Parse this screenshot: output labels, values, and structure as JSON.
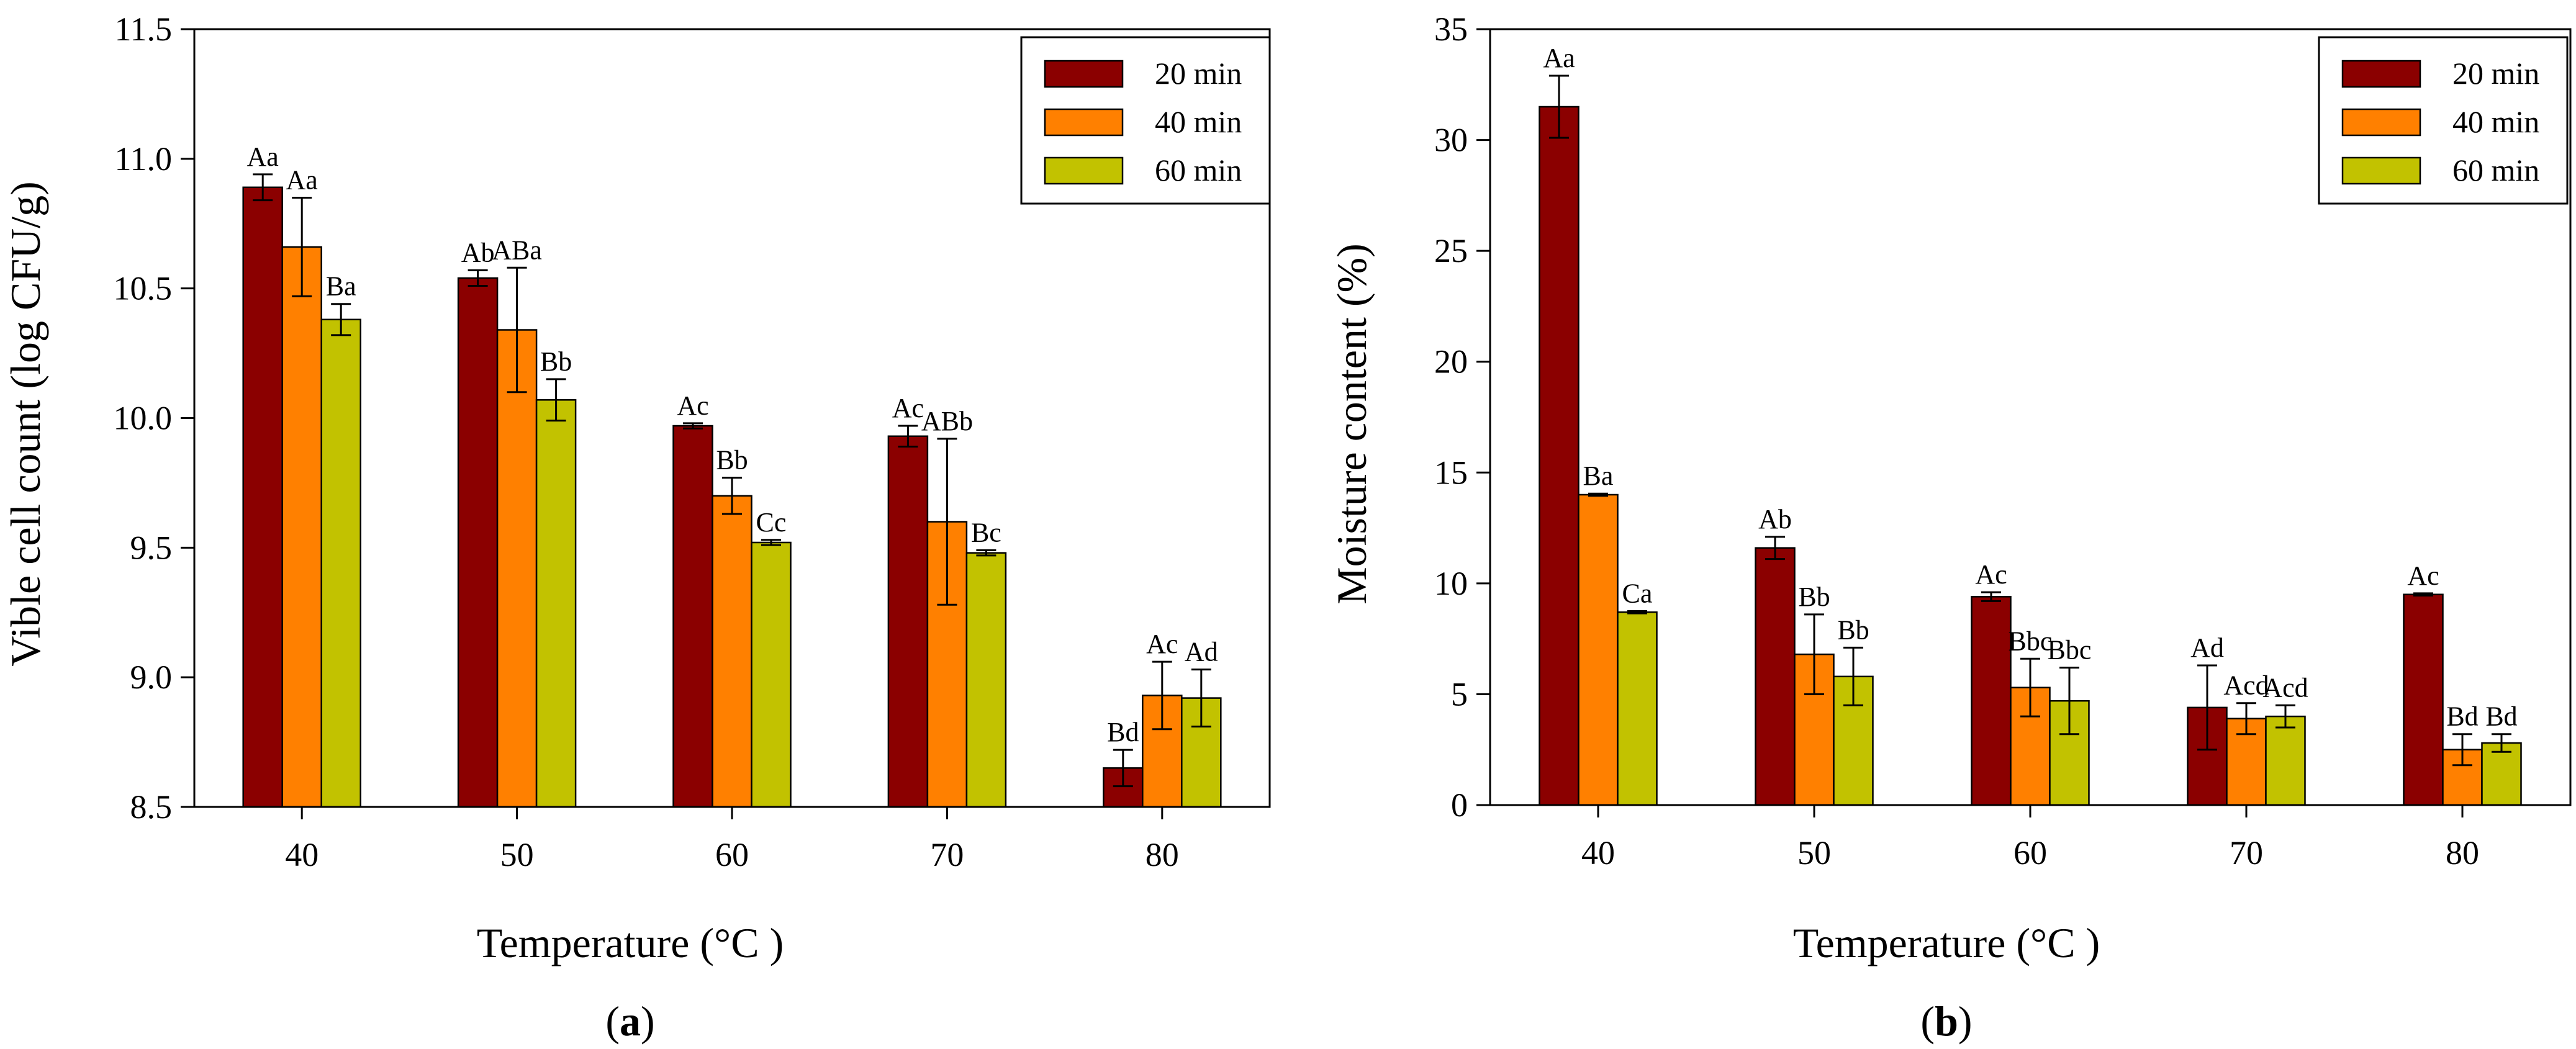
{
  "colors": {
    "20 min": "#8b0000",
    "40 min": "#ff8000",
    "60 min": "#c2c200"
  },
  "chart_data": [
    {
      "type": "bar",
      "panel_label": "(a)",
      "panel_letter": "a",
      "title": "",
      "xlabel": "Temperature (°C )",
      "ylabel": "Vible cell count (log CFU/g)",
      "categories": [
        "40",
        "50",
        "60",
        "70",
        "80"
      ],
      "ylim": [
        8.5,
        11.5
      ],
      "yticks": [
        "8.5",
        "9.0",
        "9.5",
        "10.0",
        "10.5",
        "11.0",
        "11.5"
      ],
      "grid": false,
      "legend_position": "top-right",
      "series": [
        {
          "name": "20 min",
          "values": [
            10.89,
            10.54,
            9.97,
            9.93,
            8.65
          ],
          "errors": [
            0.05,
            0.03,
            0.01,
            0.04,
            0.07
          ],
          "labels": [
            "Aa",
            "Ab",
            "Ac",
            "Ac",
            "Bd"
          ]
        },
        {
          "name": "40 min",
          "values": [
            10.66,
            10.34,
            9.7,
            9.6,
            8.93
          ],
          "errors": [
            0.19,
            0.24,
            0.07,
            0.32,
            0.13
          ],
          "labels": [
            "Aa",
            "ABa",
            "Bb",
            "ABb",
            "Ac"
          ]
        },
        {
          "name": "60 min",
          "values": [
            10.38,
            10.07,
            9.52,
            9.48,
            8.92
          ],
          "errors": [
            0.06,
            0.08,
            0.01,
            0.01,
            0.11
          ],
          "labels": [
            "Ba",
            "Bb",
            "Cc",
            "Bc",
            "Ad"
          ]
        }
      ]
    },
    {
      "type": "bar",
      "panel_label": "(b)",
      "panel_letter": "b",
      "title": "",
      "xlabel": "Temperature (°C )",
      "ylabel": "Moisture content (%)",
      "categories": [
        "40",
        "50",
        "60",
        "70",
        "80"
      ],
      "ylim": [
        0,
        35
      ],
      "yticks": [
        "0",
        "5",
        "10",
        "15",
        "20",
        "25",
        "30",
        "35"
      ],
      "grid": false,
      "legend_position": "top-right",
      "series": [
        {
          "name": "20 min",
          "values": [
            31.5,
            11.6,
            9.4,
            4.4,
            9.5
          ],
          "errors": [
            1.4,
            0.5,
            0.2,
            1.9,
            0.05
          ],
          "labels": [
            "Aa",
            "Ab",
            "Ac",
            "Ad",
            "Ac"
          ]
        },
        {
          "name": "40 min",
          "values": [
            14.0,
            6.8,
            5.3,
            3.9,
            2.5
          ],
          "errors": [
            0.05,
            1.8,
            1.3,
            0.7,
            0.7
          ],
          "labels": [
            "Ba",
            "Bb",
            "Bbc",
            "Acd",
            "Bd"
          ]
        },
        {
          "name": "60 min",
          "values": [
            8.7,
            5.8,
            4.7,
            4.0,
            2.8
          ],
          "errors": [
            0.05,
            1.3,
            1.5,
            0.5,
            0.4
          ],
          "labels": [
            "Ca",
            "Bb",
            "Bbc",
            "Acd",
            "Bd"
          ]
        }
      ]
    }
  ]
}
